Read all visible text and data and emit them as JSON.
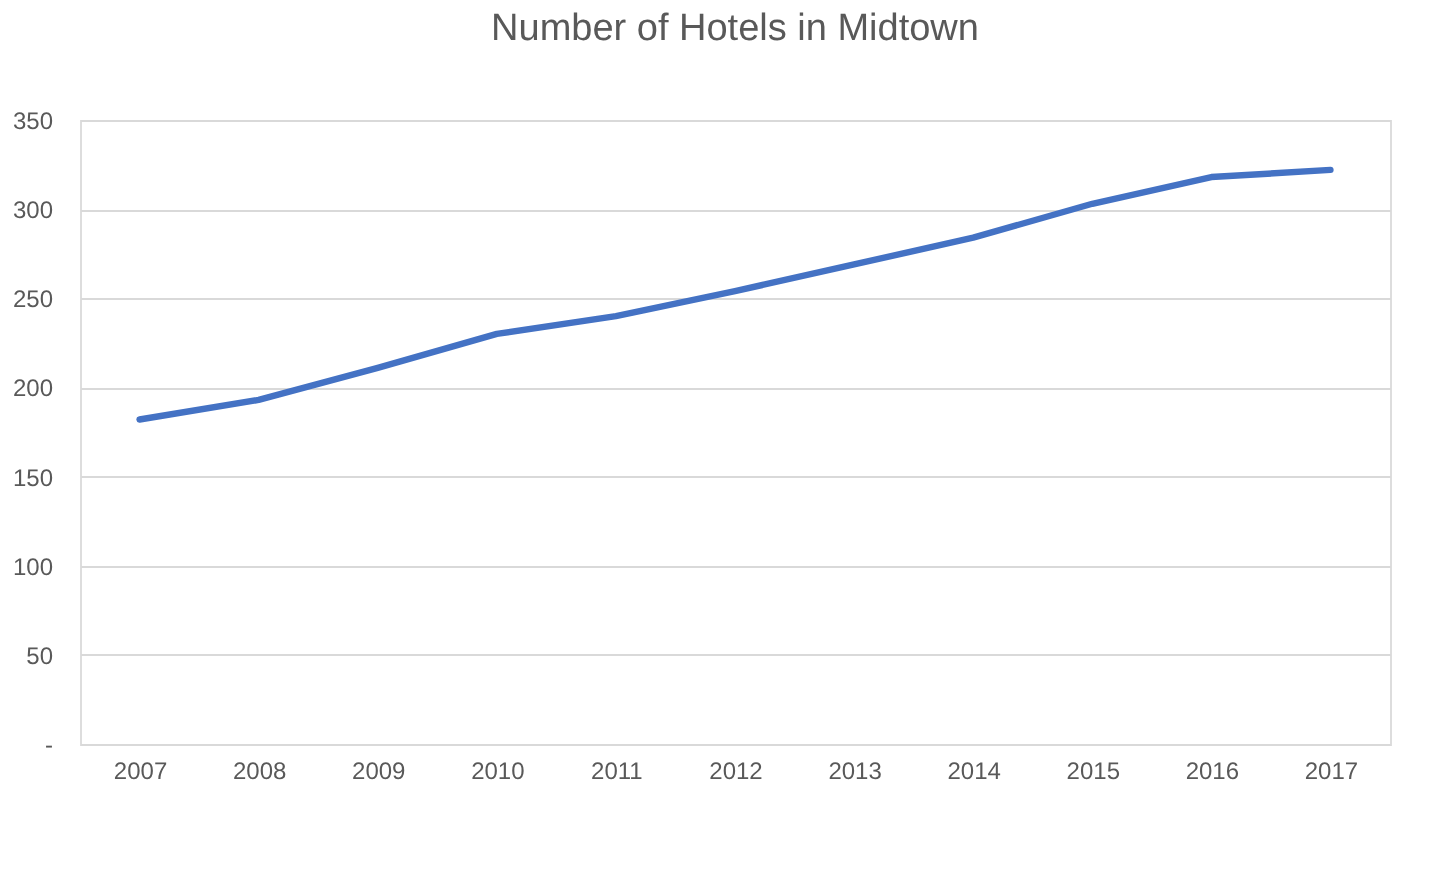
{
  "chart_data": {
    "type": "line",
    "title": "Number of Hotels in Midtown",
    "categories": [
      "2007",
      "2008",
      "2009",
      "2010",
      "2011",
      "2012",
      "2013",
      "2014",
      "2015",
      "2016",
      "2017"
    ],
    "series": [
      {
        "color": "#4472c4",
        "values": [
          182,
          193,
          211,
          230,
          240,
          254,
          269,
          284,
          303,
          318,
          322
        ]
      }
    ],
    "ylim": [
      0,
      350
    ],
    "yticks": [
      {
        "value": 0,
        "label": "-"
      },
      50,
      100,
      150,
      200,
      250,
      300,
      350
    ],
    "grid": "y",
    "marker": "none",
    "line_style": "solid"
  }
}
